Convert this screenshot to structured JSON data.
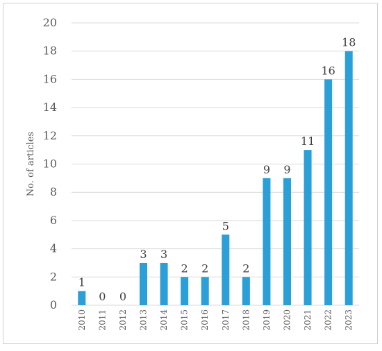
{
  "chart_data": {
    "type": "bar",
    "title": "",
    "xlabel": "",
    "ylabel": "No. of articles",
    "categories": [
      "2010",
      "2011",
      "2012",
      "2013",
      "2014",
      "2015",
      "2016",
      "2017",
      "2018",
      "2019",
      "2020",
      "2021",
      "2022",
      "2023"
    ],
    "values": [
      1,
      0,
      0,
      3,
      3,
      2,
      2,
      5,
      2,
      9,
      9,
      11,
      16,
      18
    ],
    "ylim": [
      0,
      20
    ],
    "yticks": [
      0,
      2,
      4,
      6,
      8,
      10,
      12,
      14,
      16,
      18,
      20
    ],
    "grid": true,
    "data_labels": true,
    "bar_color": "#2a9fd8"
  }
}
